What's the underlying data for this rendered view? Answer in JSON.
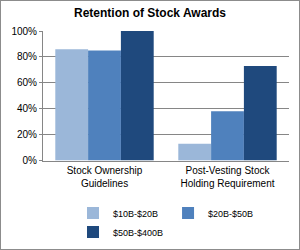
{
  "chart_data": {
    "type": "bar",
    "title": "Retention of Stock Awards",
    "categories": [
      "Stock Ownership Guidelines",
      "Post-Vesting Stock Holding Requirement"
    ],
    "series": [
      {
        "name": "$10B-$20B",
        "color": "#9bb7d9",
        "values": [
          86,
          13
        ]
      },
      {
        "name": "$20B-$50B",
        "color": "#4f81bd",
        "values": [
          85,
          38
        ]
      },
      {
        "name": "$50B-$400B",
        "color": "#1f497d",
        "values": [
          100,
          73
        ]
      }
    ],
    "ylim": [
      0,
      100
    ],
    "yticks": [
      {
        "value": 0,
        "label": "0%"
      },
      {
        "value": 20,
        "label": "20%"
      },
      {
        "value": 40,
        "label": "40%"
      },
      {
        "value": 60,
        "label": "60%"
      },
      {
        "value": 80,
        "label": "80%"
      },
      {
        "value": 100,
        "label": "100%"
      }
    ],
    "grid": true,
    "legend": "bottom"
  }
}
